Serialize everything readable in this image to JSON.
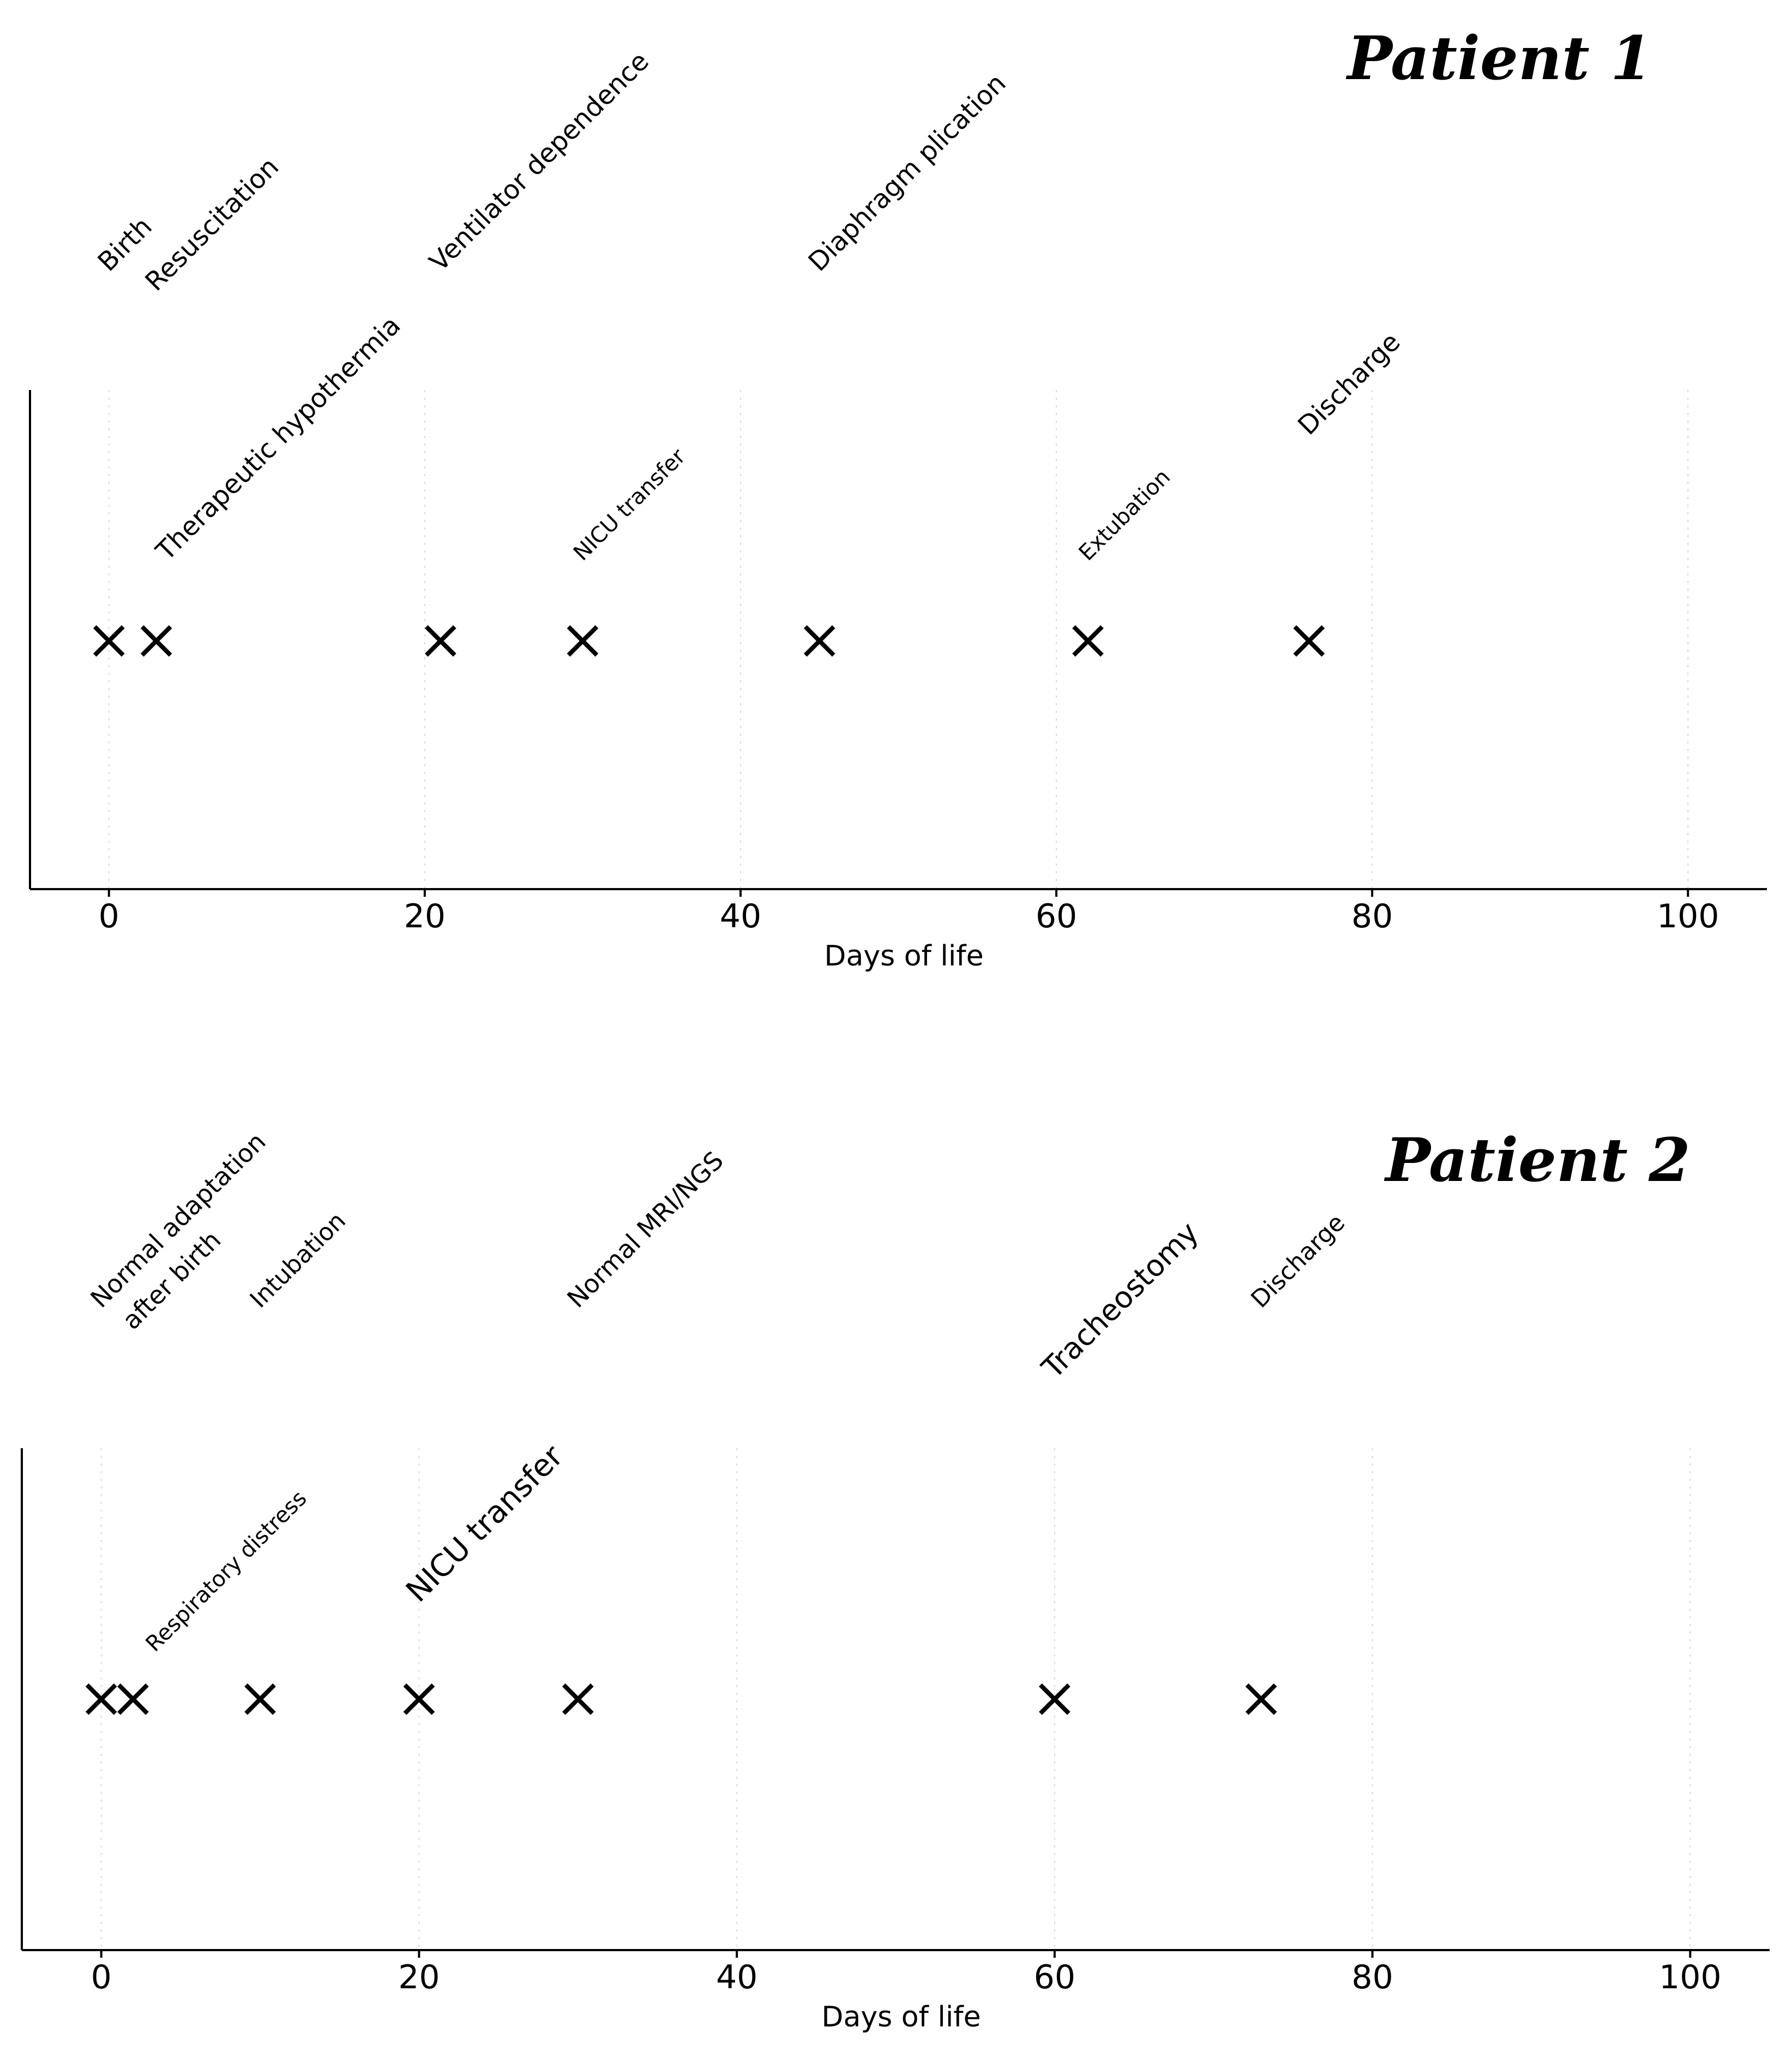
{
  "chart_data": [
    {
      "type": "scatter",
      "title": "Patient 1",
      "xlabel": "Days of life",
      "ylabel": "",
      "xlim": [
        -5,
        105
      ],
      "xticks": [
        0,
        20,
        40,
        60,
        80,
        100
      ],
      "grid": true,
      "marker": "x",
      "events": [
        {
          "day": 0,
          "label": "Birth",
          "tier": "upper"
        },
        {
          "day": 3,
          "label": "Resuscitation",
          "tier": "upper"
        },
        {
          "day": 3,
          "label": "Therapeutic hypothermia",
          "tier": "lower"
        },
        {
          "day": 21,
          "label": "Ventilator dependence",
          "tier": "upper"
        },
        {
          "day": 30,
          "label": "NICU transfer",
          "tier": "lower"
        },
        {
          "day": 45,
          "label": "Diaphragm plication",
          "tier": "upper"
        },
        {
          "day": 62,
          "label": "Extubation",
          "tier": "lower"
        },
        {
          "day": 76,
          "label": "Discharge",
          "tier": "lower"
        }
      ],
      "markers": [
        0,
        3,
        21,
        30,
        45,
        62,
        76
      ]
    },
    {
      "type": "scatter",
      "title": "Patient 2",
      "xlabel": "Days of life",
      "ylabel": "",
      "xlim": [
        -5,
        105
      ],
      "xticks": [
        0,
        20,
        40,
        60,
        80,
        100
      ],
      "grid": true,
      "marker": "x",
      "events": [
        {
          "day": 0,
          "label": "Normal adaptation",
          "tier": "upper"
        },
        {
          "day": 2,
          "label": "after birth",
          "tier": "upper"
        },
        {
          "day": 2,
          "label": "Respiratory distress",
          "tier": "lower"
        },
        {
          "day": 10,
          "label": "Intubation",
          "tier": "upper"
        },
        {
          "day": 20,
          "label": "NICU transfer",
          "tier": "lower"
        },
        {
          "day": 30,
          "label": "Normal MRI/NGS",
          "tier": "upper"
        },
        {
          "day": 60,
          "label": "Tracheostomy",
          "tier": "upper"
        },
        {
          "day": 73,
          "label": "Discharge",
          "tier": "upper"
        }
      ],
      "markers": [
        0,
        2,
        10,
        20,
        30,
        60,
        73
      ]
    }
  ]
}
